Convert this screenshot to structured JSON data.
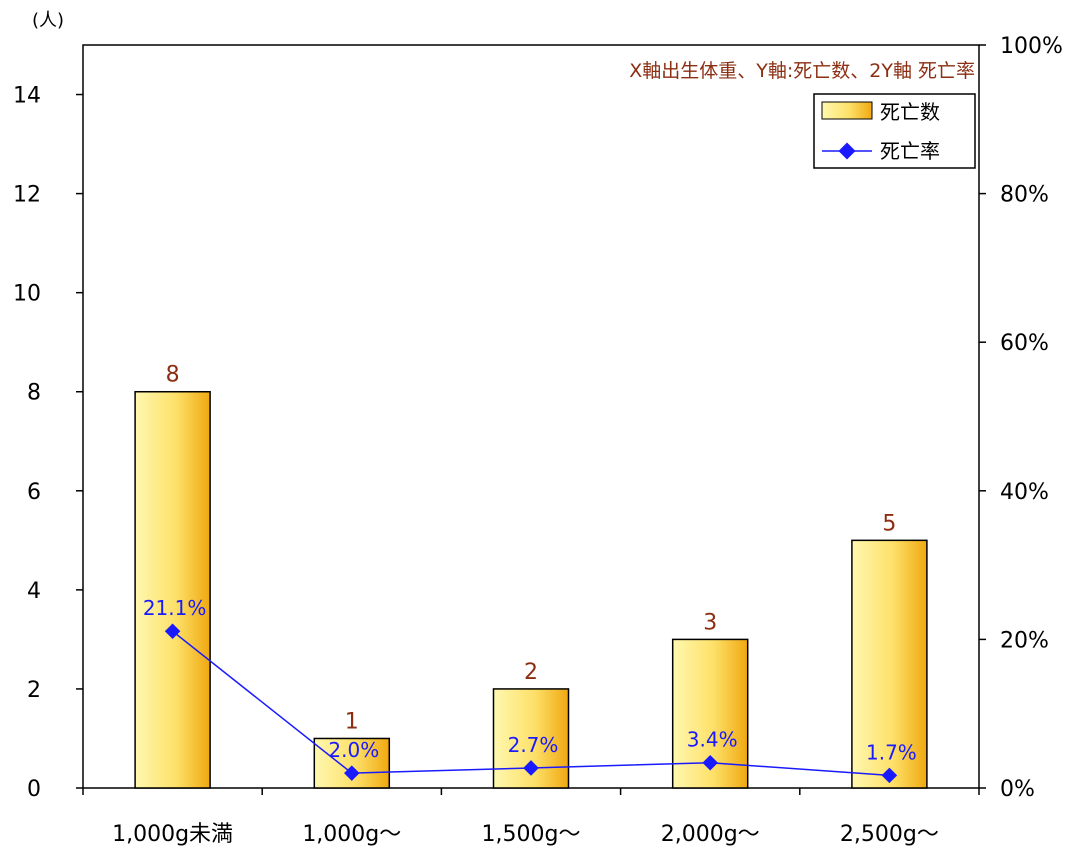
{
  "chart_data": {
    "type": "bar",
    "title": "",
    "annotation": "X軸出生体重、Y軸:死亡数、2Y軸 死亡率",
    "ylabel": "(人)",
    "xlabel": "",
    "categories": [
      "1,000g未満",
      "1,000g～",
      "1,500g～",
      "2,000g～",
      "2,500g～"
    ],
    "series": [
      {
        "name": "死亡数",
        "type": "bar",
        "axis": "left",
        "values": [
          8,
          1,
          2,
          3,
          5
        ],
        "labels": [
          "8",
          "1",
          "2",
          "3",
          "5"
        ]
      },
      {
        "name": "死亡率",
        "type": "line",
        "axis": "right",
        "values": [
          21.1,
          2.0,
          2.7,
          3.4,
          1.7
        ],
        "labels": [
          "21.1%",
          "2.0%",
          "2.7%",
          "3.4%",
          "1.7%"
        ]
      }
    ],
    "ylim": [
      0,
      15
    ],
    "yticks": [
      "0",
      "2",
      "4",
      "6",
      "8",
      "10",
      "12",
      "14"
    ],
    "y2lim": [
      0,
      100
    ],
    "y2ticks": [
      "0%",
      "20%",
      "40%",
      "60%",
      "80%",
      "100%"
    ],
    "grid": false,
    "legend_position": "top-right",
    "colors": {
      "bar_light": "#fff8b0",
      "bar_mid": "#fde068",
      "bar_dark": "#f0a810",
      "bar_label": "#8b2e12",
      "line": "#1a1aff",
      "rate_label": "#1a1aff",
      "annotation": "#8b2e12",
      "axis": "#000000"
    }
  }
}
